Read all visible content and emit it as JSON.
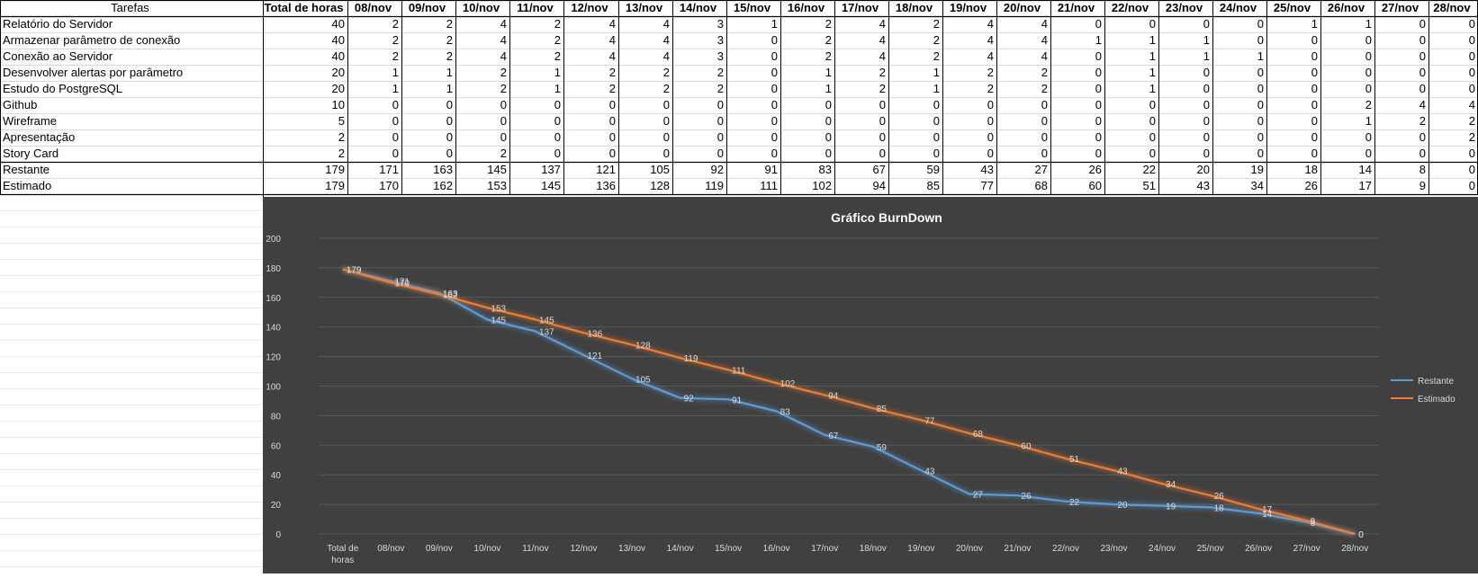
{
  "sheet": {
    "header_first": "Tarefas",
    "header_total": "Total de horas",
    "dates": [
      "08/nov",
      "09/nov",
      "10/nov",
      "11/nov",
      "12/nov",
      "13/nov",
      "14/nov",
      "15/nov",
      "16/nov",
      "17/nov",
      "18/nov",
      "19/nov",
      "20/nov",
      "21/nov",
      "22/nov",
      "23/nov",
      "24/nov",
      "25/nov",
      "26/nov",
      "27/nov",
      "28/nov"
    ],
    "tasks": [
      {
        "name": "Relatório do Servidor",
        "total": 40,
        "days": [
          2,
          2,
          4,
          2,
          4,
          4,
          3,
          1,
          2,
          4,
          2,
          4,
          4,
          0,
          0,
          0,
          0,
          1,
          1,
          0,
          0
        ]
      },
      {
        "name": "Armazenar parâmetro de conexão",
        "total": 40,
        "days": [
          2,
          2,
          4,
          2,
          4,
          4,
          3,
          0,
          2,
          4,
          2,
          4,
          4,
          1,
          1,
          1,
          0,
          0,
          0,
          0,
          0
        ]
      },
      {
        "name": "Conexão ao Servidor",
        "total": 40,
        "days": [
          2,
          2,
          4,
          2,
          4,
          4,
          3,
          0,
          2,
          4,
          2,
          4,
          4,
          0,
          1,
          1,
          1,
          0,
          0,
          0,
          0
        ]
      },
      {
        "name": "Desenvolver alertas por parâmetro",
        "total": 20,
        "days": [
          1,
          1,
          2,
          1,
          2,
          2,
          2,
          0,
          1,
          2,
          1,
          2,
          2,
          0,
          1,
          0,
          0,
          0,
          0,
          0,
          0
        ]
      },
      {
        "name": "Estudo do PostgreSQL",
        "total": 20,
        "days": [
          1,
          1,
          2,
          1,
          2,
          2,
          2,
          0,
          1,
          2,
          1,
          2,
          2,
          0,
          1,
          0,
          0,
          0,
          0,
          0,
          0
        ]
      },
      {
        "name": "Github",
        "total": 10,
        "days": [
          0,
          0,
          0,
          0,
          0,
          0,
          0,
          0,
          0,
          0,
          0,
          0,
          0,
          0,
          0,
          0,
          0,
          0,
          2,
          4,
          4
        ]
      },
      {
        "name": "Wireframe",
        "total": 5,
        "days": [
          0,
          0,
          0,
          0,
          0,
          0,
          0,
          0,
          0,
          0,
          0,
          0,
          0,
          0,
          0,
          0,
          0,
          0,
          1,
          2,
          2
        ]
      },
      {
        "name": "Apresentação",
        "total": 2,
        "days": [
          0,
          0,
          0,
          0,
          0,
          0,
          0,
          0,
          0,
          0,
          0,
          0,
          0,
          0,
          0,
          0,
          0,
          0,
          0,
          0,
          2
        ]
      },
      {
        "name": "Story Card",
        "total": 2,
        "days": [
          0,
          0,
          2,
          0,
          0,
          0,
          0,
          0,
          0,
          0,
          0,
          0,
          0,
          0,
          0,
          0,
          0,
          0,
          0,
          0,
          0
        ]
      }
    ],
    "summary": [
      {
        "name": "Restante",
        "total": 179,
        "days": [
          171,
          163,
          145,
          137,
          121,
          105,
          92,
          91,
          83,
          67,
          59,
          43,
          27,
          26,
          22,
          20,
          19,
          18,
          14,
          8,
          0
        ]
      },
      {
        "name": "Estimado",
        "total": 179,
        "days": [
          170,
          162,
          153,
          145,
          136,
          128,
          119,
          111,
          102,
          94,
          85,
          77,
          68,
          60,
          51,
          43,
          34,
          26,
          17,
          9,
          0
        ]
      }
    ]
  },
  "chart_data": {
    "type": "line",
    "title": "Gráfico BurnDown",
    "categories": [
      "Total de horas",
      "08/nov",
      "09/nov",
      "10/nov",
      "11/nov",
      "12/nov",
      "13/nov",
      "14/nov",
      "15/nov",
      "16/nov",
      "17/nov",
      "18/nov",
      "19/nov",
      "20/nov",
      "21/nov",
      "22/nov",
      "23/nov",
      "24/nov",
      "25/nov",
      "26/nov",
      "27/nov",
      "28/nov"
    ],
    "series": [
      {
        "name": "Restante",
        "color": "#5b9bd5",
        "values": [
          179,
          171,
          163,
          145,
          137,
          121,
          105,
          92,
          91,
          83,
          67,
          59,
          43,
          27,
          26,
          22,
          20,
          19,
          18,
          14,
          8,
          0
        ]
      },
      {
        "name": "Estimado",
        "color": "#ed7d31",
        "values": [
          179,
          170,
          162,
          153,
          145,
          136,
          128,
          119,
          111,
          102,
          94,
          85,
          77,
          68,
          60,
          51,
          43,
          34,
          26,
          17,
          9,
          0
        ]
      }
    ],
    "ylim": [
      0,
      200
    ],
    "yticks": [
      0,
      20,
      40,
      60,
      80,
      100,
      120,
      140,
      160,
      180,
      200
    ],
    "grid": true,
    "legend": "right",
    "data_labels": true
  }
}
